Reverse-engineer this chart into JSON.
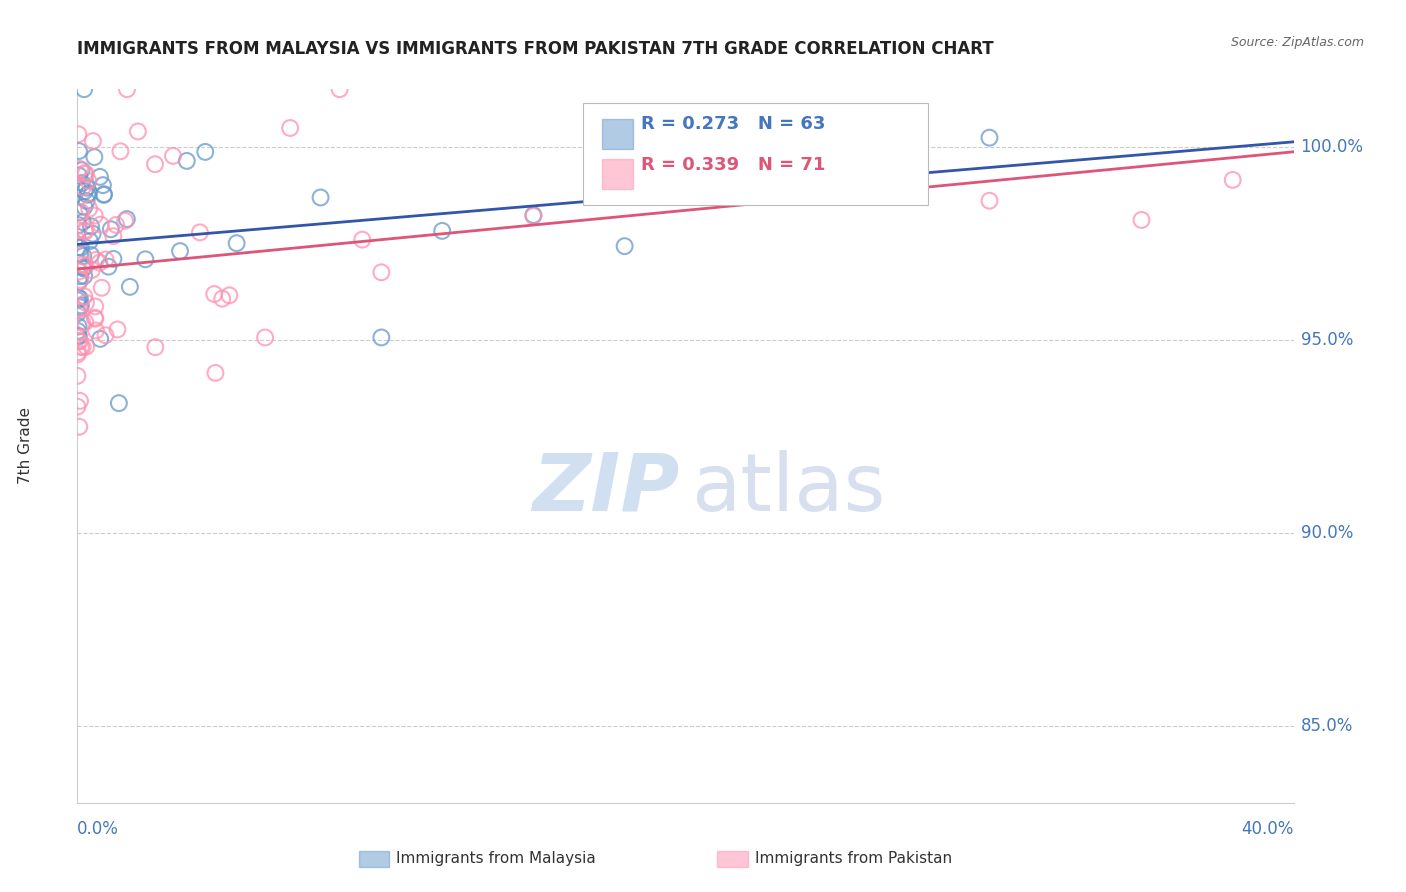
{
  "title": "IMMIGRANTS FROM MALAYSIA VS IMMIGRANTS FROM PAKISTAN 7TH GRADE CORRELATION CHART",
  "source": "Source: ZipAtlas.com",
  "ylabel": "7th Grade",
  "y_ticks": [
    85.0,
    90.0,
    95.0,
    100.0
  ],
  "x_min": 0.0,
  "x_max": 40.0,
  "y_min": 83.0,
  "y_max": 101.5,
  "malaysia_color": "#6699CC",
  "pakistan_color": "#FF8FAF",
  "malaysia_R": 0.273,
  "malaysia_N": 63,
  "pakistan_R": 0.339,
  "pakistan_N": 71,
  "background_color": "#FFFFFF",
  "grid_color": "#CCCCCC",
  "title_color": "#222222",
  "tick_color": "#4477BB",
  "malaysia_line_color": "#3355AA",
  "pakistan_line_color": "#DD5577"
}
